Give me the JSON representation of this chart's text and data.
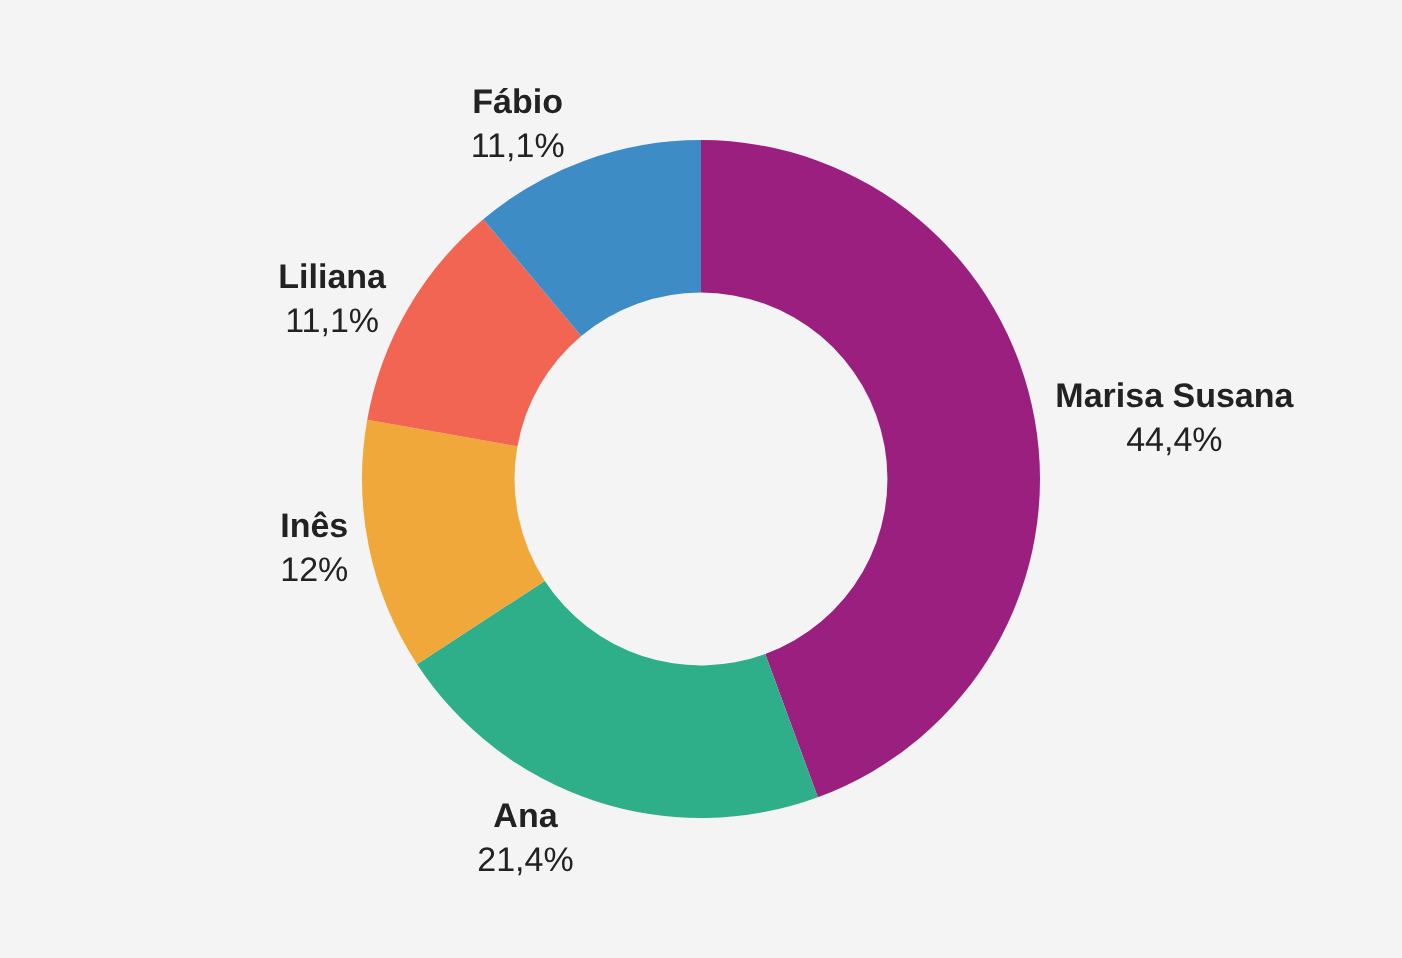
{
  "chart_data": {
    "type": "donut",
    "categories": [
      "Marisa Susana",
      "Ana",
      "Inês",
      "Liliana",
      "Fábio"
    ],
    "values": [
      44.4,
      21.4,
      12,
      11.1,
      11.1
    ],
    "value_labels": [
      "44,4%",
      "21,4%",
      "12%",
      "11,1%",
      "11,1%"
    ],
    "colors": [
      "#9b1f7f",
      "#2fae8a",
      "#f0a83a",
      "#f26552",
      "#3d8cc6"
    ]
  }
}
